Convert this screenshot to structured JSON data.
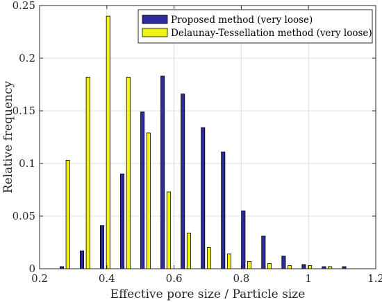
{
  "chart_data": {
    "type": "bar",
    "xlabel": "Effective pore size / Particle size",
    "ylabel": "Relative frequency",
    "xlim": [
      0.2,
      1.2
    ],
    "ylim": [
      0,
      0.25
    ],
    "x_ticks": [
      0.2,
      0.4,
      0.6,
      0.8,
      1,
      1.2
    ],
    "x_tick_labels": [
      "0.2",
      "0.4",
      "0.6",
      "0.8",
      "1",
      "1.2"
    ],
    "y_ticks": [
      0,
      0.05,
      0.1,
      0.15,
      0.2,
      0.25
    ],
    "y_tick_labels": [
      "0",
      "0.05",
      "0.1",
      "0.15",
      "0.2",
      "0.25"
    ],
    "grid": true,
    "legend_position": "top-right",
    "x": [
      0.275,
      0.335,
      0.395,
      0.455,
      0.515,
      0.575,
      0.635,
      0.695,
      0.755,
      0.815,
      0.875,
      0.935,
      0.995,
      1.055,
      1.115
    ],
    "series": [
      {
        "name": "Proposed method (very loose)",
        "color": "#2d2a9a",
        "values": [
          0.002,
          0.017,
          0.041,
          0.09,
          0.149,
          0.183,
          0.166,
          0.134,
          0.111,
          0.055,
          0.031,
          0.012,
          0.004,
          0.002,
          0.002
        ]
      },
      {
        "name": "Delaunay-Tessellation method (very loose)",
        "color": "#f2f20f",
        "values": [
          0.103,
          0.182,
          0.24,
          0.182,
          0.129,
          0.073,
          0.034,
          0.02,
          0.014,
          0.007,
          0.005,
          0.003,
          0.003,
          0.002,
          0
        ]
      }
    ]
  }
}
